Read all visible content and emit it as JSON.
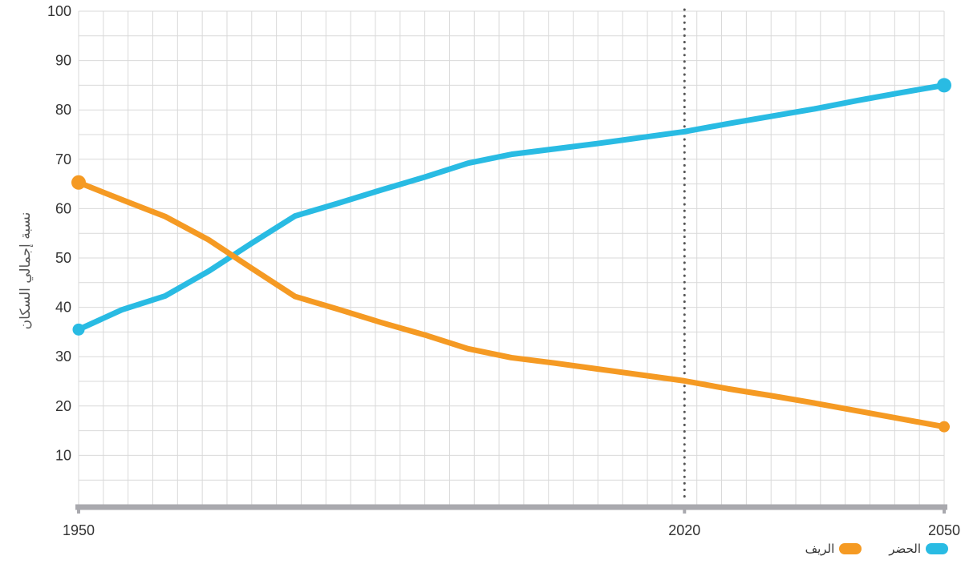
{
  "chart_data": {
    "type": "line",
    "title": "",
    "xlabel": "",
    "ylabel": "نسبة إجمالي السكان",
    "xlim": [
      1950,
      2050
    ],
    "ylim": [
      0,
      100
    ],
    "x_ticks": [
      1950,
      2020,
      2050
    ],
    "y_ticks": [
      10,
      20,
      30,
      40,
      50,
      60,
      70,
      80,
      90,
      100
    ],
    "grid": true,
    "legend_position": "bottom-right",
    "reference_line": {
      "x": 2020,
      "style": "dotted"
    },
    "x": [
      1950,
      1955,
      1960,
      1965,
      1970,
      1975,
      1980,
      1985,
      1990,
      1995,
      2000,
      2005,
      2010,
      2015,
      2020,
      2025,
      2030,
      2035,
      2040,
      2045,
      2050
    ],
    "series": [
      {
        "name": "الحضر",
        "color": "#29BBE3",
        "values": [
          35.5,
          39.5,
          42.3,
          47.3,
          53.0,
          58.5,
          61.1,
          63.8,
          66.4,
          69.2,
          71.0,
          72.1,
          73.2,
          74.4,
          75.6,
          77.2,
          78.7,
          80.2,
          81.9,
          83.5,
          85.0
        ]
      },
      {
        "name": "الريف",
        "color": "#F59A23",
        "values": [
          65.3,
          61.8,
          58.4,
          53.7,
          47.9,
          42.2,
          39.6,
          36.9,
          34.4,
          31.6,
          29.8,
          28.7,
          27.5,
          26.3,
          25.1,
          23.5,
          22.1,
          20.6,
          19.0,
          17.4,
          15.8
        ]
      }
    ]
  }
}
